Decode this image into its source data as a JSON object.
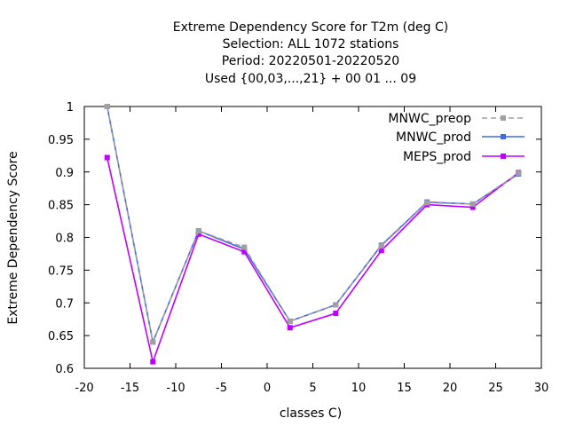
{
  "chart_data": {
    "type": "line",
    "title_lines": [
      "Extreme Dependency Score  for T2m (deg C)",
      "Selection: ALL    1072 stations",
      "Period: 20220501-20220520",
      "Used {00,03,...,21} + 00 01 ... 09"
    ],
    "xlabel": "classes C)",
    "ylabel": "Extreme Dependency Score",
    "xlim": [
      -20,
      30
    ],
    "ylim": [
      0.6,
      1.0
    ],
    "xticks": [
      -20,
      -15,
      -10,
      -5,
      0,
      5,
      10,
      15,
      20,
      25,
      30
    ],
    "yticks": [
      0.6,
      0.65,
      0.7,
      0.75,
      0.8,
      0.85,
      0.9,
      0.95,
      1.0
    ],
    "xtick_labels": [
      "-20",
      "-15",
      "-10",
      "-5",
      "0",
      "5",
      "10",
      "15",
      "20",
      "25",
      "30"
    ],
    "ytick_labels": [
      "0.6",
      "0.65",
      "0.7",
      "0.75",
      "0.8",
      "0.85",
      "0.9",
      "0.95",
      "1"
    ],
    "legend_position": "top-right",
    "grid": false,
    "x": [
      -17.5,
      -12.5,
      -7.5,
      -2.5,
      2.5,
      7.5,
      12.5,
      17.5,
      22.5,
      27.5
    ],
    "series": [
      {
        "name": "MNWC_preop",
        "color": "#a0a0a0",
        "dash": "dashed",
        "values": [
          1.0,
          0.64,
          0.81,
          0.785,
          0.672,
          0.697,
          0.787,
          0.853,
          0.851,
          0.898
        ]
      },
      {
        "name": "MNWC_prod",
        "color": "#4169e1",
        "dash": "solid",
        "values": [
          1.0,
          0.64,
          0.81,
          0.782,
          0.672,
          0.697,
          0.788,
          0.854,
          0.851,
          0.897
        ]
      },
      {
        "name": "MEPS_prod",
        "color": "#c000ff",
        "dash": "solid",
        "values": [
          0.922,
          0.61,
          0.805,
          0.778,
          0.662,
          0.684,
          0.78,
          0.85,
          0.846,
          0.899
        ]
      }
    ]
  }
}
